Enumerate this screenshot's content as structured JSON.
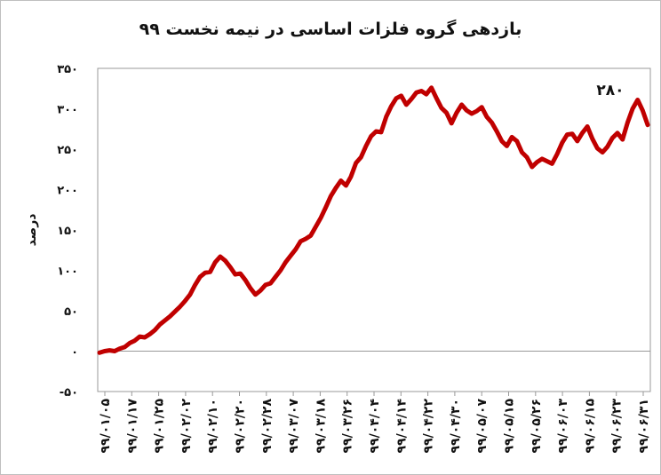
{
  "chart_data": {
    "type": "line",
    "title": "بازدهی گروه فلزات اساسی در نیمه نخست ۹۹",
    "ylabel": "درصد",
    "xlabel": "",
    "ylim": [
      -50,
      350
    ],
    "yticks": [
      -50,
      0,
      50,
      100,
      150,
      200,
      250,
      300,
      350
    ],
    "ytick_labels": [
      "-50",
      "0",
      "50",
      "100",
      "150",
      "200",
      "250",
      "300",
      "350"
    ],
    "grid": false,
    "line_color": "#c00000",
    "xtick_labels": [
      "99/01/05",
      "99/01/17",
      "99/01/25",
      "99/02/02",
      "99/02/10",
      "99/02/20",
      "99/02/28",
      "99/03/07",
      "99/03/18",
      "99/03/26",
      "99/04/04",
      "99/04/14",
      "99/04/22",
      "99/04/30",
      "99/05/07",
      "99/05/15",
      "99/05/26",
      "99/06/03",
      "99/06/15",
      "99/06/23",
      "99/06/31"
    ],
    "annotation": "280",
    "series": [
      {
        "values": [
          -2,
          0,
          1,
          0,
          3,
          5,
          10,
          13,
          18,
          17,
          21,
          26,
          33,
          38,
          43,
          49,
          55,
          62,
          70,
          82,
          92,
          97,
          98,
          110,
          117,
          112,
          104,
          95,
          96,
          88,
          78,
          70,
          75,
          82,
          84,
          92,
          100,
          110,
          118,
          126,
          136,
          139,
          143,
          154,
          165,
          178,
          192,
          202,
          211,
          205,
          216,
          233,
          240,
          254,
          266,
          272,
          271,
          290,
          303,
          313,
          316,
          305,
          312,
          320,
          322,
          318,
          326,
          313,
          301,
          295,
          282,
          295,
          305,
          298,
          294,
          297,
          302,
          290,
          283,
          272,
          260,
          254,
          265,
          260,
          246,
          240,
          228,
          234,
          238,
          235,
          232,
          244,
          258,
          268,
          269,
          260,
          270,
          278,
          263,
          251,
          246,
          253,
          264,
          270,
          262,
          283,
          300,
          311,
          298,
          280
        ]
      }
    ]
  }
}
